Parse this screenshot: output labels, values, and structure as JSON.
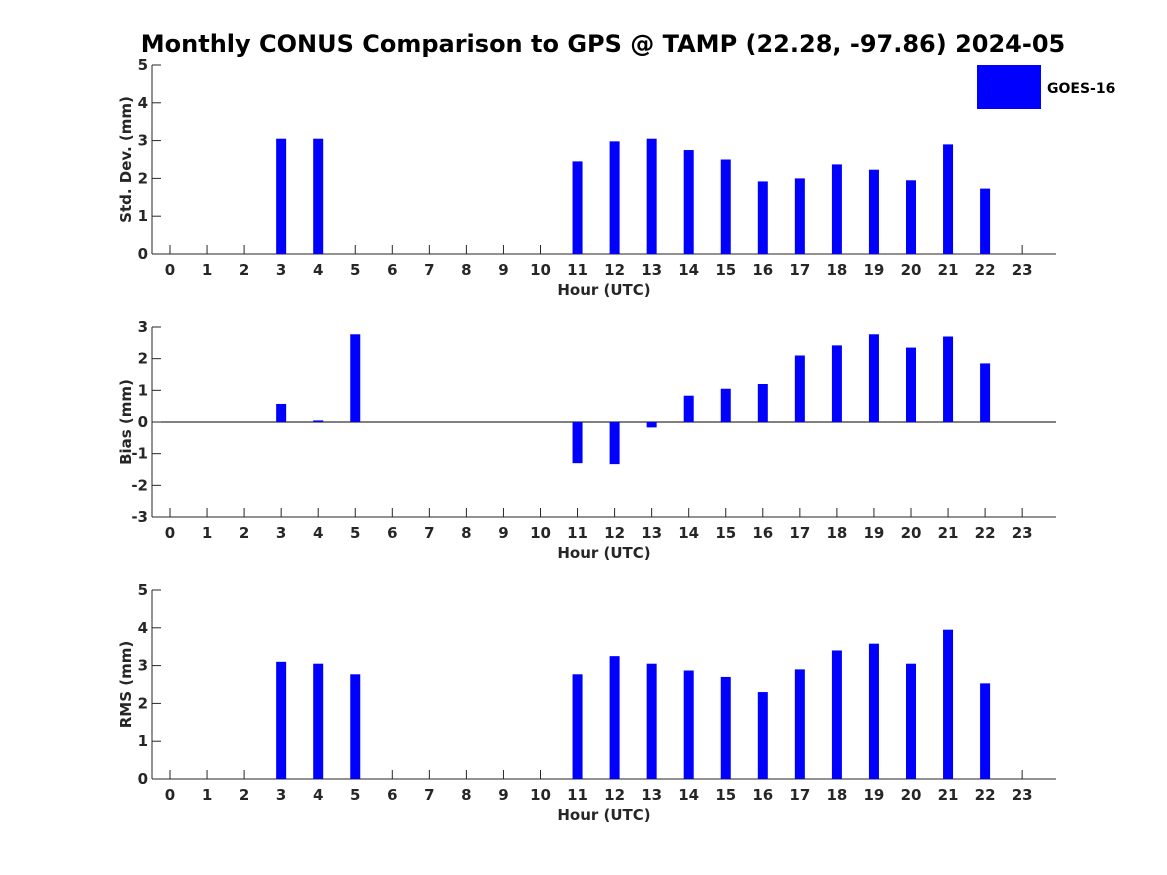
{
  "title": "Monthly CONUS Comparison to GPS @ TAMP (22.28, -97.86) 2024-05",
  "legend": {
    "label": "GOES-16",
    "color": "#0000ff",
    "placement": "top-right"
  },
  "chart_data": [
    {
      "type": "bar",
      "xlabel": "Hour (UTC)",
      "ylabel": "Std. Dev. (mm)",
      "categories": [
        "0",
        "1",
        "2",
        "3",
        "4",
        "5",
        "6",
        "7",
        "8",
        "9",
        "10",
        "11",
        "12",
        "13",
        "14",
        "15",
        "16",
        "17",
        "18",
        "19",
        "20",
        "21",
        "22",
        "23"
      ],
      "ylim": [
        0,
        5
      ],
      "yticks": [
        "0",
        "1",
        "2",
        "3",
        "4",
        "5"
      ],
      "series": [
        {
          "name": "GOES-16",
          "color": "#0000ff",
          "values": [
            null,
            null,
            null,
            3.05,
            3.05,
            null,
            null,
            null,
            null,
            null,
            null,
            2.45,
            2.98,
            3.05,
            2.75,
            2.5,
            1.92,
            2.0,
            2.37,
            2.23,
            1.95,
            2.9,
            1.73,
            null
          ]
        }
      ]
    },
    {
      "type": "bar",
      "xlabel": "Hour (UTC)",
      "ylabel": "Bias (mm)",
      "categories": [
        "0",
        "1",
        "2",
        "3",
        "4",
        "5",
        "6",
        "7",
        "8",
        "9",
        "10",
        "11",
        "12",
        "13",
        "14",
        "15",
        "16",
        "17",
        "18",
        "19",
        "20",
        "21",
        "22",
        "23"
      ],
      "ylim": [
        -3,
        3
      ],
      "yticks": [
        "-3",
        "-2",
        "-1",
        "0",
        "1",
        "2",
        "3"
      ],
      "series": [
        {
          "name": "GOES-16",
          "color": "#0000ff",
          "values": [
            null,
            null,
            null,
            0.57,
            0.05,
            2.77,
            null,
            null,
            null,
            null,
            null,
            -1.3,
            -1.33,
            -0.17,
            0.83,
            1.05,
            1.2,
            2.1,
            2.42,
            2.77,
            2.35,
            2.7,
            1.85,
            null
          ]
        }
      ]
    },
    {
      "type": "bar",
      "xlabel": "Hour (UTC)",
      "ylabel": "RMS (mm)",
      "categories": [
        "0",
        "1",
        "2",
        "3",
        "4",
        "5",
        "6",
        "7",
        "8",
        "9",
        "10",
        "11",
        "12",
        "13",
        "14",
        "15",
        "16",
        "17",
        "18",
        "19",
        "20",
        "21",
        "22",
        "23"
      ],
      "ylim": [
        0,
        5
      ],
      "yticks": [
        "0",
        "1",
        "2",
        "3",
        "4",
        "5"
      ],
      "series": [
        {
          "name": "GOES-16",
          "color": "#0000ff",
          "values": [
            null,
            null,
            null,
            3.1,
            3.05,
            2.77,
            null,
            null,
            null,
            null,
            null,
            2.77,
            3.25,
            3.05,
            2.87,
            2.7,
            2.3,
            2.9,
            3.4,
            3.58,
            3.05,
            3.95,
            2.53,
            null
          ]
        }
      ]
    }
  ]
}
